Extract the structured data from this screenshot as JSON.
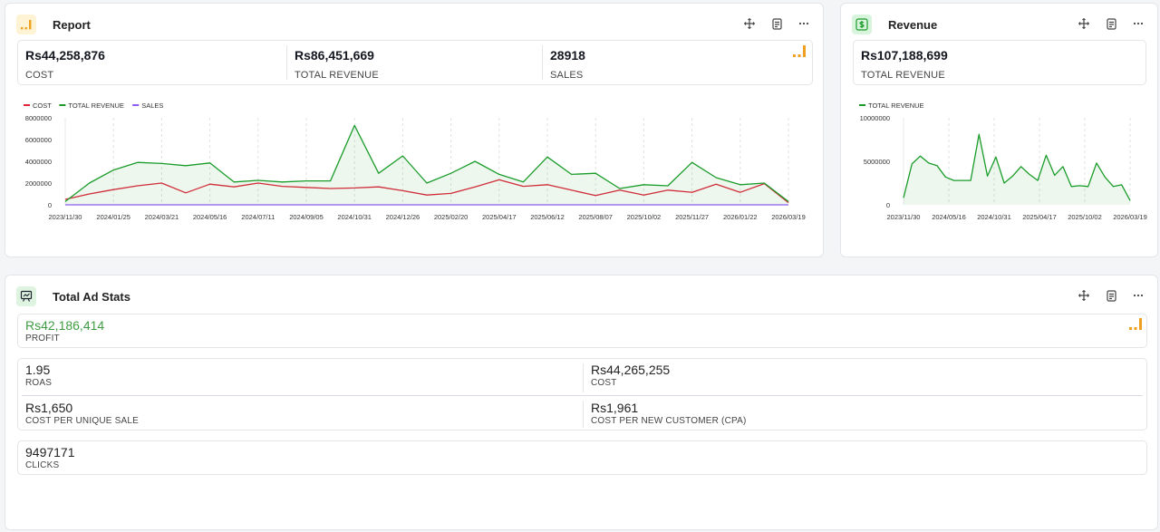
{
  "report": {
    "title": "Report",
    "icon": "bar-chart-icon",
    "stats": [
      {
        "value": "Rs44,258,876",
        "label": "COST"
      },
      {
        "value": "Rs86,451,669",
        "label": "TOTAL REVENUE"
      },
      {
        "value": "28918",
        "label": "SALES"
      }
    ]
  },
  "revenue": {
    "title": "Revenue",
    "icon": "dollar-icon",
    "stats": [
      {
        "value": "Rs107,188,699",
        "label": "TOTAL REVENUE"
      }
    ]
  },
  "ad_stats": {
    "title": "Total Ad Stats",
    "icon": "presentation-icon",
    "profit": {
      "value": "Rs42,186,414",
      "label": "PROFIT"
    },
    "grid": [
      {
        "value": "1.95",
        "label": "ROAS"
      },
      {
        "value": "Rs44,265,255",
        "label": "COST"
      },
      {
        "value": "Rs1,650",
        "label": "COST PER UNIQUE SALE"
      },
      {
        "value": "Rs1,961",
        "label": "COST PER NEW CUSTOMER (CPA)"
      }
    ],
    "clicks": {
      "value": "9497171",
      "label": "CLICKS"
    }
  },
  "colors": {
    "cost": "#e0243a",
    "revenue": "#1a9c2a",
    "sales": "#8c5cf0",
    "profit": "#3f9b43",
    "accent": "#f0a020"
  },
  "chart_data": [
    {
      "type": "line",
      "title": "",
      "x_tick_labels": [
        "2023/11/30",
        "2024/01/25",
        "2024/03/21",
        "2024/05/16",
        "2024/07/11",
        "2024/09/05",
        "2024/10/31",
        "2024/12/26",
        "2025/02/20",
        "2025/04/17",
        "2025/06/12",
        "2025/08/07",
        "2025/10/02",
        "2025/11/27",
        "2026/01/22",
        "2026/03/19"
      ],
      "y_tick_labels": [
        "0",
        "2000000",
        "4000000",
        "6000000",
        "8000000"
      ],
      "ylim": [
        0,
        8000000
      ],
      "legend": "top-left",
      "series": [
        {
          "name": "COST",
          "color": "#e0243a",
          "values": [
            500000,
            1000000,
            1400000,
            1750000,
            2000000,
            1100000,
            1900000,
            1650000,
            2000000,
            1700000,
            1600000,
            1500000,
            1550000,
            1650000,
            1300000,
            900000,
            1050000,
            1650000,
            2300000,
            1700000,
            1850000,
            1350000,
            850000,
            1350000,
            900000,
            1350000,
            1150000,
            1900000,
            1150000,
            1950000,
            200000
          ]
        },
        {
          "name": "TOTAL REVENUE",
          "color": "#1a9c2a",
          "values": [
            300000,
            2000000,
            3200000,
            3900000,
            3800000,
            3600000,
            3850000,
            2100000,
            2250000,
            2100000,
            2200000,
            2200000,
            7300000,
            2900000,
            4500000,
            2000000,
            2900000,
            4000000,
            2800000,
            2100000,
            4400000,
            2800000,
            2900000,
            1500000,
            1850000,
            1750000,
            3900000,
            2500000,
            1850000,
            2000000,
            300000
          ]
        },
        {
          "name": "SALES",
          "color": "#8c5cf0",
          "values": [
            0,
            0,
            0,
            0,
            0,
            0,
            0,
            0,
            0,
            0,
            0,
            0,
            0,
            0,
            0,
            0,
            0,
            0,
            0,
            0,
            0,
            0,
            0,
            0,
            0,
            0,
            0,
            0,
            0,
            0,
            0
          ]
        }
      ]
    },
    {
      "type": "area",
      "title": "",
      "x_tick_labels": [
        "2023/11/30",
        "2024/05/16",
        "2024/10/31",
        "2025/04/17",
        "2025/10/02",
        "2026/03/19"
      ],
      "y_tick_labels": [
        "0",
        "5000000",
        "10000000"
      ],
      "ylim": [
        0,
        10000000
      ],
      "legend": "top-left",
      "series": [
        {
          "name": "TOTAL REVENUE",
          "color": "#1a9c2a",
          "values": [
            800000,
            4700000,
            5600000,
            4800000,
            4500000,
            3200000,
            2800000,
            2800000,
            2800000,
            8100000,
            3300000,
            5500000,
            2500000,
            3300000,
            4400000,
            3500000,
            2800000,
            5700000,
            3400000,
            4400000,
            2100000,
            2200000,
            2100000,
            4800000,
            3200000,
            2100000,
            2300000,
            500000
          ]
        }
      ]
    }
  ]
}
